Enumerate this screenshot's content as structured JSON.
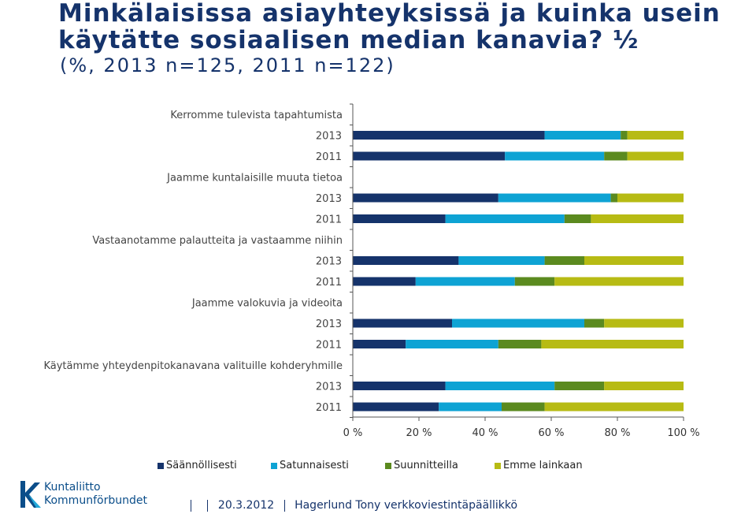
{
  "slide": {
    "title": "Minkälaisissa asiayhteyksissä ja kuinka usein käytätte sosiaalisen median kanavia? ½",
    "subtitle": "(%, 2013 n=125, 2011 n=122)"
  },
  "chart_data": {
    "type": "bar",
    "orientation": "horizontal",
    "stacked": true,
    "title": "",
    "xlim": [
      0,
      100
    ],
    "x_ticks": [
      "0 %",
      "20 %",
      "40 %",
      "60 %",
      "80 %",
      "100 %"
    ],
    "groups": [
      "Kerromme tulevista tapahtumista",
      "Jaamme kuntalaisille muuta tietoa",
      "Vastaanotamme palautteita ja vastaamme niihin",
      "Jaamme valokuvia ja videoita",
      "Käytämme yhteydenpitokanavana valituille kohderyhmille"
    ],
    "categories": [
      "2013",
      "2011",
      "2013",
      "2011",
      "2013",
      "2011",
      "2013",
      "2011",
      "2013",
      "2011"
    ],
    "series": [
      {
        "name": "Säännöllisesti",
        "color": "#15336b",
        "values": [
          58,
          46,
          44,
          28,
          32,
          19,
          30,
          16,
          28,
          26
        ]
      },
      {
        "name": "Satunnaisesti",
        "color": "#0ea3d4",
        "values": [
          23,
          30,
          34,
          36,
          26,
          30,
          40,
          28,
          33,
          19
        ]
      },
      {
        "name": "Suunnitteilla",
        "color": "#5b8a1f",
        "values": [
          2,
          7,
          2,
          8,
          12,
          12,
          6,
          13,
          15,
          13
        ]
      },
      {
        "name": "Emme lainkaan",
        "color": "#b7bb14",
        "values": [
          17,
          17,
          20,
          28,
          30,
          39,
          24,
          43,
          24,
          42
        ]
      }
    ],
    "legend_position": "bottom",
    "grid": false
  },
  "footer": {
    "date": "20.3.2012",
    "author": "Hagerlund Tony verkkoviestintäpäällikkö"
  },
  "logo": {
    "line1": "Kuntaliitto",
    "line2": "Kommunförbundet"
  }
}
